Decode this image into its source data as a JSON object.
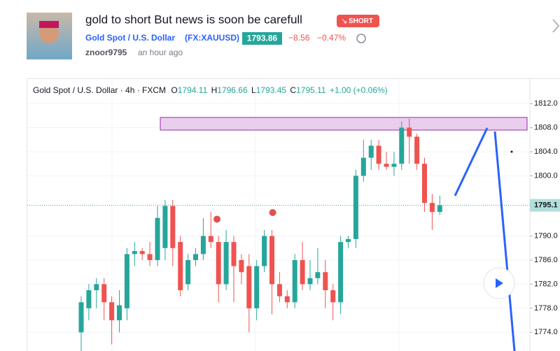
{
  "header": {
    "title": "gold to short But news is soon be carefull",
    "badge": "SHORT",
    "symbol": "Gold Spot / U.S. Dollar",
    "ticker": "(FX:XAUUSD)",
    "price": "1793.86",
    "change": "−8.56",
    "change_pct": "−0.47%",
    "author": "znoor9795",
    "time": "an hour ago"
  },
  "legend": {
    "symbol": "Gold Spot / U.S. Dollar · 4h · FXCM",
    "ohlc": [
      {
        "label": "O",
        "value": "1794.11"
      },
      {
        "label": "H",
        "value": "1796.66"
      },
      {
        "label": "L",
        "value": "1793.45"
      },
      {
        "label": "C",
        "value": "1795.11"
      }
    ],
    "change": "+1.00 (+0.06%)"
  },
  "chart_data": {
    "type": "candlestick",
    "up_color": "#26a69a",
    "down_color": "#ef5350",
    "ylim": [
      1770.9,
      1815.5
    ],
    "yticks": [
      {
        "value": 1774,
        "label": "1774.0"
      },
      {
        "value": 1778,
        "label": "1778.0"
      },
      {
        "value": 1782,
        "label": "1782.0"
      },
      {
        "value": 1786,
        "label": "1786.0"
      },
      {
        "value": 1790,
        "label": "1790.0"
      },
      {
        "value": 1800,
        "label": "1800.0"
      },
      {
        "value": 1804,
        "label": "1804.0"
      },
      {
        "value": 1808,
        "label": "1808.0"
      },
      {
        "value": 1812,
        "label": "1812.0"
      }
    ],
    "grid": true,
    "open": [
      1774,
      1778,
      1781,
      1782,
      1779,
      1776,
      1778,
      1787,
      1787.5,
      1787,
      1786,
      1788,
      1795,
      1789,
      1782,
      1786,
      1787,
      1790,
      1789,
      1782,
      1789,
      1786,
      1785,
      1778,
      1785,
      1790,
      1782,
      1780,
      1779,
      1786,
      1782,
      1783,
      1784,
      1781,
      1779,
      1789,
      1789.5,
      1800,
      1803,
      1805,
      1802,
      1801.5,
      1802,
      1808,
      1806.5,
      1802,
      1795.5,
      1794
    ],
    "high": [
      1780,
      1782,
      1783,
      1783,
      1780,
      1781,
      1788,
      1789,
      1788,
      1789,
      1795,
      1796,
      1796,
      1790,
      1787,
      1788,
      1793,
      1794,
      1790,
      1791,
      1790,
      1787,
      1787,
      1786,
      1791,
      1791,
      1784,
      1781,
      1787,
      1789,
      1786,
      1788,
      1786,
      1782,
      1790,
      1790,
      1801,
      1806,
      1806,
      1806,
      1804,
      1804,
      1809,
      1809.5,
      1807,
      1803,
      1797,
      1796.7
    ],
    "low": [
      1770,
      1776,
      1778,
      1776,
      1772,
      1774,
      1776,
      1785,
      1786,
      1785,
      1785,
      1786,
      1785,
      1780,
      1781,
      1785,
      1786,
      1788,
      1779,
      1781,
      1779,
      1782,
      1774,
      1776,
      1784,
      1777,
      1779,
      1778,
      1778,
      1781,
      1781,
      1782,
      1778,
      1776,
      1777,
      1788,
      1788,
      1799,
      1801,
      1801,
      1801,
      1800,
      1801,
      1802,
      1801,
      1794,
      1791,
      1793.5
    ],
    "close": [
      1779,
      1781,
      1782,
      1779,
      1776,
      1778.5,
      1787,
      1787.5,
      1787,
      1786,
      1793,
      1795,
      1788,
      1781,
      1786,
      1787,
      1790,
      1789,
      1782,
      1789,
      1785,
      1784,
      1778,
      1785,
      1790,
      1782,
      1780,
      1779,
      1786,
      1782,
      1783,
      1784,
      1781,
      1779,
      1789,
      1789.5,
      1800,
      1803,
      1805,
      1802,
      1801.5,
      1802,
      1808,
      1806.5,
      1802,
      1795.5,
      1794,
      1795.1
    ],
    "signals": {
      "x": [
        17.8,
        25.1
      ],
      "values": [
        1792.8,
        1793.9
      ],
      "color": "#e05252"
    },
    "zone": {
      "low": 1807.6,
      "high": 1809.7,
      "color": "#e1bee7"
    },
    "last_price": {
      "value": 1795.1,
      "label": "1795.1"
    }
  }
}
